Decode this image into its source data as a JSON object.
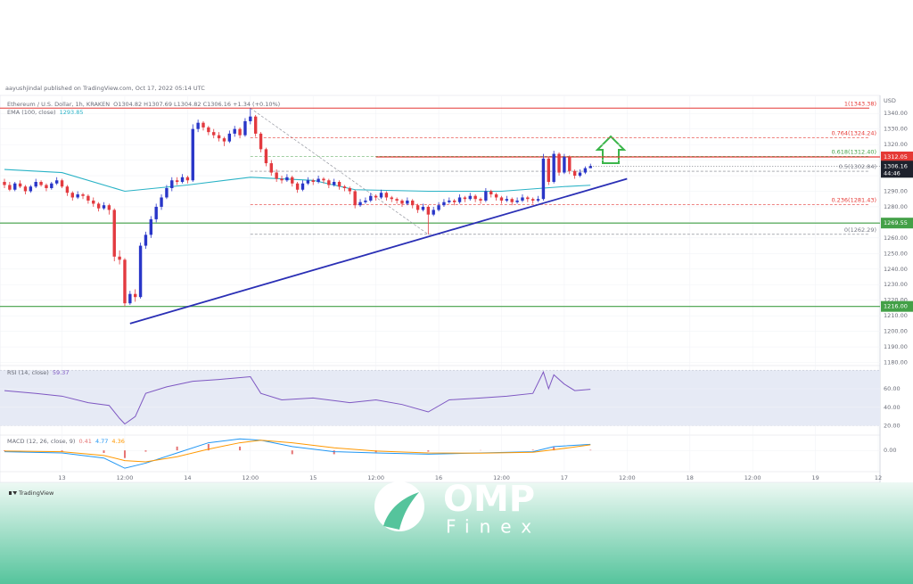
{
  "header": "aayushjindal published on TradingView.com, Oct 17, 2022 05:14 UTC",
  "footer": {
    "tradingview": "TradingView",
    "brand": "OMP",
    "sub": "Finex"
  },
  "chart_data": [
    {
      "type": "candlestick",
      "title": "Ethereum / U.S. Dollar, 1h, KRAKEN",
      "ohlc_legend": "O1304.82 H1307.69 L1304.82 C1306.16 +1.34 (+0.10%)",
      "currency": "USD",
      "countdown": "44:46",
      "up_color": "#2936c8",
      "down_color": "#e33a3f",
      "xlim": [
        -11,
        156
      ],
      "xticks": [
        {
          "value": 0,
          "label": "13"
        },
        {
          "value": 12,
          "label": "12:00"
        },
        {
          "value": 24,
          "label": "14"
        },
        {
          "value": 36,
          "label": "12:00"
        },
        {
          "value": 48,
          "label": "15"
        },
        {
          "value": 60,
          "label": "12:00"
        },
        {
          "value": 72,
          "label": "16"
        },
        {
          "value": 84,
          "label": "12:00"
        },
        {
          "value": 96,
          "label": "17"
        },
        {
          "value": 108,
          "label": "12:00"
        },
        {
          "value": 120,
          "label": "18"
        },
        {
          "value": 132,
          "label": "12:00"
        },
        {
          "value": 144,
          "label": "19"
        },
        {
          "value": 156,
          "label": "12"
        }
      ],
      "ylim": [
        1178,
        1351
      ],
      "yticks": [
        {
          "value": 1180,
          "label": "1180.00"
        },
        {
          "value": 1190,
          "label": "1190.00"
        },
        {
          "value": 1200,
          "label": "1200.00"
        },
        {
          "value": 1210,
          "label": "1210.00"
        },
        {
          "value": 1220,
          "label": "1220.00"
        },
        {
          "value": 1230,
          "label": "1230.00"
        },
        {
          "value": 1240,
          "label": "1240.00"
        },
        {
          "value": 1250,
          "label": "1250.00"
        },
        {
          "value": 1260,
          "label": "1260.00"
        },
        {
          "value": 1270,
          "label": "1270.00"
        },
        {
          "value": 1280,
          "label": "1280.00"
        },
        {
          "value": 1290,
          "label": "1290.00"
        },
        {
          "value": 1300,
          "label": "1300.00"
        },
        {
          "value": 1310,
          "label": "1310.00"
        },
        {
          "value": 1320,
          "label": "1320.00"
        },
        {
          "value": 1330,
          "label": "1330.00"
        },
        {
          "value": 1340,
          "label": "1340.00"
        }
      ],
      "x": [
        -11,
        -10,
        -9,
        -8,
        -7,
        -6,
        -5,
        -4,
        -3,
        -2,
        -1,
        0,
        1,
        2,
        3,
        4,
        5,
        6,
        7,
        8,
        9,
        10,
        11,
        12,
        13,
        14,
        15,
        16,
        17,
        18,
        19,
        20,
        21,
        22,
        23,
        24,
        25,
        26,
        27,
        28,
        29,
        30,
        31,
        32,
        33,
        34,
        35,
        36,
        37,
        38,
        39,
        40,
        41,
        42,
        43,
        44,
        45,
        46,
        47,
        48,
        49,
        50,
        51,
        52,
        53,
        54,
        55,
        56,
        57,
        58,
        59,
        60,
        61,
        62,
        63,
        64,
        65,
        66,
        67,
        68,
        69,
        70,
        71,
        72,
        73,
        74,
        75,
        76,
        77,
        78,
        79,
        80,
        81,
        82,
        83,
        84,
        85,
        86,
        87,
        88,
        89,
        90,
        91,
        92,
        93,
        94,
        95,
        96,
        97,
        98,
        99,
        100,
        101
      ],
      "ohlc": [
        [
          1296,
          1298,
          1292,
          1294
        ],
        [
          1294,
          1296,
          1290,
          1291
        ],
        [
          1291,
          1296,
          1290,
          1295
        ],
        [
          1295,
          1297,
          1292,
          1293
        ],
        [
          1293,
          1294,
          1288,
          1290
        ],
        [
          1290,
          1294,
          1289,
          1293
        ],
        [
          1293,
          1298,
          1292,
          1296
        ],
        [
          1296,
          1297,
          1293,
          1294
        ],
        [
          1294,
          1295,
          1290,
          1292
        ],
        [
          1292,
          1296,
          1291,
          1295
        ],
        [
          1295,
          1299,
          1294,
          1297
        ],
        [
          1297,
          1298,
          1292,
          1293
        ],
        [
          1293,
          1294,
          1287,
          1289
        ],
        [
          1289,
          1290,
          1284,
          1286
        ],
        [
          1286,
          1290,
          1285,
          1288
        ],
        [
          1288,
          1289,
          1285,
          1287
        ],
        [
          1287,
          1288,
          1282,
          1284
        ],
        [
          1284,
          1286,
          1280,
          1282
        ],
        [
          1282,
          1283,
          1277,
          1279
        ],
        [
          1279,
          1283,
          1278,
          1281
        ],
        [
          1281,
          1282,
          1275,
          1278
        ],
        [
          1278,
          1279,
          1245,
          1248
        ],
        [
          1248,
          1252,
          1243,
          1246
        ],
        [
          1246,
          1247,
          1216,
          1218
        ],
        [
          1218,
          1226,
          1217,
          1224
        ],
        [
          1224,
          1227,
          1219,
          1222
        ],
        [
          1222,
          1257,
          1221,
          1255
        ],
        [
          1255,
          1264,
          1253,
          1262
        ],
        [
          1262,
          1274,
          1260,
          1272
        ],
        [
          1272,
          1282,
          1270,
          1280
        ],
        [
          1280,
          1288,
          1278,
          1286
        ],
        [
          1286,
          1294,
          1285,
          1292
        ],
        [
          1292,
          1299,
          1290,
          1297
        ],
        [
          1297,
          1299,
          1294,
          1296
        ],
        [
          1296,
          1301,
          1295,
          1299
        ],
        [
          1299,
          1300,
          1295,
          1297
        ],
        [
          1297,
          1333,
          1296,
          1330
        ],
        [
          1330,
          1336,
          1328,
          1334
        ],
        [
          1334,
          1335,
          1329,
          1331
        ],
        [
          1331,
          1332,
          1326,
          1328
        ],
        [
          1328,
          1330,
          1324,
          1326
        ],
        [
          1326,
          1328,
          1322,
          1324
        ],
        [
          1324,
          1325,
          1319,
          1322
        ],
        [
          1322,
          1329,
          1321,
          1327
        ],
        [
          1327,
          1332,
          1325,
          1330
        ],
        [
          1330,
          1331,
          1324,
          1326
        ],
        [
          1326,
          1337,
          1325,
          1335
        ],
        [
          1335,
          1343.38,
          1333,
          1338
        ],
        [
          1338,
          1339,
          1325,
          1327
        ],
        [
          1327,
          1328,
          1315,
          1317
        ],
        [
          1317,
          1318,
          1306,
          1308
        ],
        [
          1308,
          1310,
          1300,
          1302
        ],
        [
          1302,
          1304,
          1296,
          1298
        ],
        [
          1298,
          1300,
          1295,
          1297
        ],
        [
          1297,
          1301,
          1296,
          1299
        ],
        [
          1299,
          1300,
          1293,
          1295
        ],
        [
          1295,
          1296,
          1289,
          1291
        ],
        [
          1291,
          1297,
          1290,
          1295
        ],
        [
          1295,
          1299,
          1294,
          1297
        ],
        [
          1297,
          1298,
          1294,
          1296
        ],
        [
          1296,
          1300,
          1295,
          1298
        ],
        [
          1298,
          1299,
          1295,
          1297
        ],
        [
          1297,
          1298,
          1292,
          1294
        ],
        [
          1294,
          1298,
          1293,
          1296
        ],
        [
          1296,
          1297,
          1291,
          1293
        ],
        [
          1293,
          1294,
          1290,
          1292
        ],
        [
          1292,
          1293,
          1288,
          1290
        ],
        [
          1290,
          1291,
          1279,
          1281
        ],
        [
          1281,
          1285,
          1280,
          1283
        ],
        [
          1283,
          1286,
          1282,
          1284
        ],
        [
          1284,
          1289,
          1283,
          1287
        ],
        [
          1287,
          1288,
          1284,
          1286
        ],
        [
          1286,
          1291,
          1285,
          1289
        ],
        [
          1289,
          1290,
          1284,
          1286
        ],
        [
          1286,
          1287,
          1283,
          1285
        ],
        [
          1285,
          1286,
          1282,
          1284
        ],
        [
          1284,
          1285,
          1280,
          1282
        ],
        [
          1282,
          1286,
          1281,
          1284
        ],
        [
          1284,
          1285,
          1279,
          1281
        ],
        [
          1281,
          1282,
          1276,
          1278
        ],
        [
          1278,
          1282,
          1277,
          1280
        ],
        [
          1280,
          1281,
          1262.29,
          1275
        ],
        [
          1275,
          1280,
          1274,
          1278
        ],
        [
          1278,
          1283,
          1277,
          1281
        ],
        [
          1281,
          1285,
          1280,
          1283
        ],
        [
          1283,
          1286,
          1282,
          1284
        ],
        [
          1284,
          1285,
          1281,
          1283
        ],
        [
          1283,
          1288,
          1282,
          1286
        ],
        [
          1286,
          1287,
          1283,
          1285
        ],
        [
          1285,
          1289,
          1284,
          1287
        ],
        [
          1287,
          1288,
          1283,
          1285
        ],
        [
          1285,
          1286,
          1282,
          1284
        ],
        [
          1284,
          1292,
          1283,
          1290
        ],
        [
          1290,
          1291,
          1286,
          1288
        ],
        [
          1288,
          1289,
          1284,
          1286
        ],
        [
          1286,
          1287,
          1282,
          1284
        ],
        [
          1284,
          1287,
          1283,
          1285
        ],
        [
          1285,
          1286,
          1281,
          1283
        ],
        [
          1283,
          1286,
          1282,
          1284
        ],
        [
          1284,
          1288,
          1283,
          1286
        ],
        [
          1286,
          1287,
          1283,
          1285
        ],
        [
          1285,
          1286,
          1282,
          1284
        ],
        [
          1284,
          1287,
          1283,
          1285
        ],
        [
          1285,
          1314,
          1284,
          1311
        ],
        [
          1311,
          1312,
          1294,
          1296
        ],
        [
          1296,
          1316,
          1295,
          1314
        ],
        [
          1314,
          1315,
          1300,
          1302
        ],
        [
          1302,
          1314,
          1301,
          1312
        ],
        [
          1312,
          1313,
          1301,
          1303
        ],
        [
          1303,
          1304,
          1298,
          1300
        ],
        [
          1300,
          1304,
          1299,
          1302
        ],
        [
          1302,
          1306,
          1301,
          1304.82
        ],
        [
          1304.82,
          1307.69,
          1304.82,
          1306.16
        ]
      ],
      "series": [
        {
          "name": "EMA (100, close)",
          "color": "#2ab3c6",
          "x": [
            -11,
            0,
            12,
            24,
            36,
            48,
            56,
            70,
            84,
            96,
            101
          ],
          "values": [
            1304,
            1302,
            1290,
            1294,
            1299,
            1297,
            1291,
            1290,
            1290,
            1293,
            1293.85
          ]
        }
      ],
      "trendline": {
        "color": "#2a2fb5",
        "x": [
          13,
          108
        ],
        "values": [
          1205,
          1298
        ]
      },
      "hlines": [
        {
          "value": 1312.05,
          "color": "#e53935",
          "start": 60
        },
        {
          "value": 1269.55,
          "color": "#43a047"
        },
        {
          "value": 1216,
          "label": "1216.00",
          "color": "#43a047"
        }
      ],
      "fib": {
        "anchor": {
          "x": [
            36,
            70
          ],
          "values": [
            1343.38,
            1262.29
          ]
        },
        "levels": [
          {
            "value": 1343.38,
            "label": "1(1343.38)",
            "color": "#e53935"
          },
          {
            "value": 1324.24,
            "label": "0.764(1324.24)",
            "color": "#e53935"
          },
          {
            "value": 1312.4,
            "label": "0.618(1312.40)",
            "color": "#43a047"
          },
          {
            "value": 1302.84,
            "label": "0.5(1302.84)",
            "color": "#787b86"
          },
          {
            "value": 1281.43,
            "label": "0.236(1281.43)",
            "color": "#e53935"
          },
          {
            "value": 1262.29,
            "label": "0(1262.29)",
            "color": "#787b86"
          }
        ]
      }
    },
    {
      "type": "line",
      "title": "RSI (14, close)",
      "color": "#7e57c2",
      "band": [
        20,
        80
      ],
      "x": [
        -11,
        -5,
        0,
        5,
        9,
        11,
        12,
        14,
        16,
        20,
        25,
        30,
        36,
        38,
        42,
        48,
        55,
        60,
        65,
        70,
        74,
        80,
        85,
        90,
        92,
        93,
        94,
        96,
        98,
        101
      ],
      "values": [
        58,
        55,
        52,
        45,
        42,
        28,
        22,
        30,
        55,
        62,
        68,
        70,
        73,
        55,
        48,
        50,
        45,
        48,
        43,
        35,
        48,
        50,
        52,
        55,
        78,
        60,
        75,
        65,
        58,
        59.37
      ],
      "ylim": [
        10,
        85
      ],
      "yticks": [
        {
          "value": 60,
          "label": "60.00"
        },
        {
          "value": 40,
          "label": "40.00"
        },
        {
          "value": 20,
          "label": "20.00"
        }
      ]
    },
    {
      "type": "macd",
      "title": "MACD (12, 26, close, 9)",
      "x": [
        -11,
        0,
        8,
        12,
        16,
        22,
        28,
        34,
        38,
        44,
        52,
        60,
        70,
        80,
        90,
        94,
        101
      ],
      "series": [
        {
          "type": "bar",
          "color": "#e57373",
          "values": [
            -0.5,
            -1,
            -2,
            -6,
            -1,
            3,
            5,
            3,
            0,
            -3,
            -3,
            -1.5,
            -1,
            0.2,
            0.5,
            2.5,
            0.41
          ]
        },
        {
          "type": "line",
          "color": "#2196f3",
          "values": [
            -1,
            -2,
            -6,
            -14,
            -10,
            -2,
            6,
            9,
            8,
            3,
            -1,
            -2,
            -3,
            -2,
            -1,
            3,
            4.77
          ]
        },
        {
          "type": "line",
          "color": "#ff9800",
          "values": [
            -0.5,
            -1,
            -4,
            -8,
            -9,
            -5,
            1,
            6,
            8,
            6,
            2,
            -0.5,
            -2,
            -2.2,
            -1.5,
            0.5,
            4.36
          ]
        }
      ],
      "ylim": [
        -16,
        12
      ],
      "yticks": [
        {
          "value": 0,
          "label": "0.00"
        }
      ]
    }
  ]
}
